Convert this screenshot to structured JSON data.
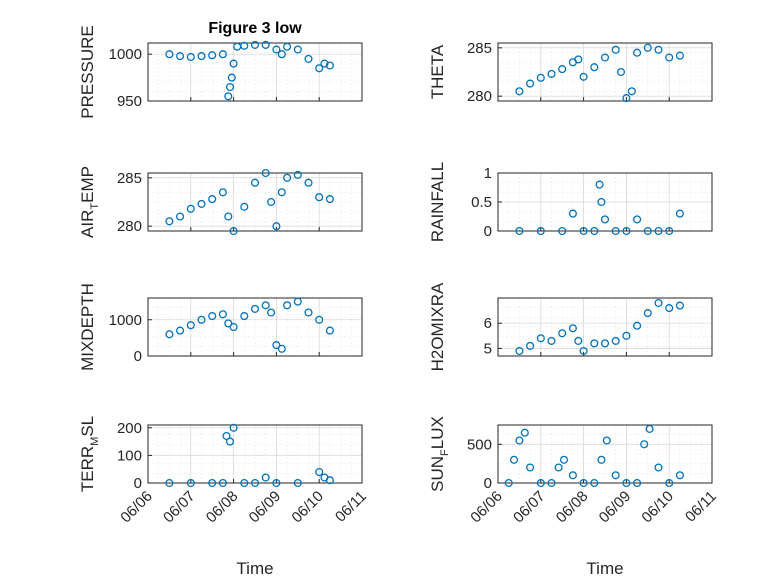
{
  "figure_title": "Figure 3 low",
  "marker_color": "#0072BD",
  "chart_data": [
    {
      "type": "scatter",
      "title": "Figure 3 low",
      "ylabel": "PRESSURE",
      "xlabel": "",
      "xlim": [
        "06/06",
        "06/11"
      ],
      "ylim": [
        950,
        1012
      ],
      "yticks": [
        "950",
        "1000"
      ],
      "ytick_values": [
        950,
        1000
      ],
      "x": [
        "06/06 12:00",
        "06/06 18:00",
        "06/07 00:00",
        "06/07 06:00",
        "06/07 12:00",
        "06/07 18:00",
        "06/07 21:00",
        "06/07 22:00",
        "06/07 23:00",
        "06/08 00:00",
        "06/08 02:00",
        "06/08 06:00",
        "06/08 12:00",
        "06/08 18:00",
        "06/09 00:00",
        "06/09 03:00",
        "06/09 06:00",
        "06/09 12:00",
        "06/09 18:00",
        "06/10 00:00",
        "06/10 03:00",
        "06/10 06:00"
      ],
      "y": [
        1000,
        998,
        997,
        998,
        999,
        1000,
        955,
        965,
        975,
        990,
        1008,
        1009,
        1010,
        1010,
        1005,
        1000,
        1008,
        1005,
        995,
        985,
        990,
        988
      ]
    },
    {
      "type": "scatter",
      "ylabel": "THETA",
      "xlim": [
        "06/06",
        "06/11"
      ],
      "ylim": [
        279.5,
        285.5
      ],
      "yticks": [
        "280",
        "285"
      ],
      "ytick_values": [
        280,
        285
      ],
      "x": [
        "06/06 12:00",
        "06/06 18:00",
        "06/07 00:00",
        "06/07 06:00",
        "06/07 12:00",
        "06/07 18:00",
        "06/07 21:00",
        "06/08 00:00",
        "06/08 06:00",
        "06/08 12:00",
        "06/08 18:00",
        "06/08 21:00",
        "06/09 00:00",
        "06/09 03:00",
        "06/09 06:00",
        "06/09 12:00",
        "06/09 18:00",
        "06/10 00:00",
        "06/10 06:00"
      ],
      "y": [
        280.5,
        281.3,
        281.9,
        282.3,
        282.8,
        283.5,
        283.8,
        282.0,
        283.0,
        284.0,
        284.8,
        282.5,
        279.8,
        280.5,
        284.5,
        285.0,
        284.8,
        284.0,
        284.2
      ]
    },
    {
      "type": "scatter",
      "ylabel": "AIR_TEMP",
      "xlim": [
        "06/06",
        "06/11"
      ],
      "ylim": [
        279.5,
        285.5
      ],
      "yticks": [
        "280",
        "285"
      ],
      "ytick_values": [
        280,
        285
      ],
      "x": [
        "06/06 12:00",
        "06/06 18:00",
        "06/07 00:00",
        "06/07 06:00",
        "06/07 12:00",
        "06/07 18:00",
        "06/07 21:00",
        "06/08 00:00",
        "06/08 06:00",
        "06/08 12:00",
        "06/08 18:00",
        "06/08 21:00",
        "06/09 00:00",
        "06/09 03:00",
        "06/09 06:00",
        "06/09 12:00",
        "06/09 18:00",
        "06/10 00:00",
        "06/10 06:00"
      ],
      "y": [
        280.5,
        281.0,
        281.8,
        282.3,
        282.8,
        283.5,
        281.0,
        279.5,
        282.0,
        284.5,
        285.5,
        282.5,
        280.0,
        283.5,
        285.0,
        285.3,
        284.5,
        283.0,
        282.8
      ]
    },
    {
      "type": "scatter",
      "ylabel": "RAINFALL",
      "xlim": [
        "06/06",
        "06/11"
      ],
      "ylim": [
        0,
        1
      ],
      "yticks": [
        "0",
        "0.5",
        "1"
      ],
      "ytick_values": [
        0,
        0.5,
        1
      ],
      "x": [
        "06/06 12:00",
        "06/07 00:00",
        "06/07 12:00",
        "06/07 18:00",
        "06/08 00:00",
        "06/08 06:00",
        "06/08 09:00",
        "06/08 10:00",
        "06/08 12:00",
        "06/08 18:00",
        "06/09 00:00",
        "06/09 06:00",
        "06/09 12:00",
        "06/09 18:00",
        "06/10 00:00",
        "06/10 06:00"
      ],
      "y": [
        0,
        0,
        0,
        0.3,
        0,
        0,
        0.8,
        0.5,
        0.2,
        0,
        0,
        0.2,
        0,
        0,
        0,
        0.3
      ]
    },
    {
      "type": "scatter",
      "ylabel": "MIXDEPTH",
      "xlim": [
        "06/06",
        "06/11"
      ],
      "ylim": [
        0,
        1600
      ],
      "yticks": [
        "0",
        "1000"
      ],
      "ytick_values": [
        0,
        1000
      ],
      "x": [
        "06/06 12:00",
        "06/06 18:00",
        "06/07 00:00",
        "06/07 06:00",
        "06/07 12:00",
        "06/07 18:00",
        "06/07 21:00",
        "06/08 00:00",
        "06/08 06:00",
        "06/08 12:00",
        "06/08 18:00",
        "06/08 21:00",
        "06/09 00:00",
        "06/09 03:00",
        "06/09 06:00",
        "06/09 12:00",
        "06/09 18:00",
        "06/10 00:00",
        "06/10 06:00"
      ],
      "y": [
        600,
        700,
        850,
        1000,
        1100,
        1150,
        900,
        800,
        1100,
        1300,
        1400,
        1200,
        300,
        200,
        1400,
        1500,
        1200,
        1000,
        700
      ]
    },
    {
      "type": "scatter",
      "ylabel": "H2OMIXRA",
      "xlim": [
        "06/06",
        "06/11"
      ],
      "ylim": [
        4.7,
        7.0
      ],
      "yticks": [
        "5",
        "6"
      ],
      "ytick_values": [
        5,
        6
      ],
      "x": [
        "06/06 12:00",
        "06/06 18:00",
        "06/07 00:00",
        "06/07 06:00",
        "06/07 12:00",
        "06/07 18:00",
        "06/07 21:00",
        "06/08 00:00",
        "06/08 06:00",
        "06/08 12:00",
        "06/08 18:00",
        "06/09 00:00",
        "06/09 06:00",
        "06/09 12:00",
        "06/09 18:00",
        "06/10 00:00",
        "06/10 06:00"
      ],
      "y": [
        4.9,
        5.1,
        5.4,
        5.3,
        5.6,
        5.8,
        5.3,
        4.9,
        5.2,
        5.2,
        5.3,
        5.5,
        5.9,
        6.4,
        6.8,
        6.6,
        6.7
      ]
    },
    {
      "type": "scatter",
      "ylabel": "TERR_MSL",
      "xlim": [
        "06/06",
        "06/11"
      ],
      "ylim": [
        0,
        210
      ],
      "yticks": [
        "0",
        "100",
        "200"
      ],
      "ytick_values": [
        0,
        100,
        200
      ],
      "xticks": [
        "06/06",
        "06/07",
        "06/08",
        "06/09",
        "06/10",
        "06/11"
      ],
      "xlabel": "Time",
      "x": [
        "06/06 12:00",
        "06/07 00:00",
        "06/07 12:00",
        "06/07 18:00",
        "06/07 20:00",
        "06/07 22:00",
        "06/08 00:00",
        "06/08 06:00",
        "06/08 12:00",
        "06/08 18:00",
        "06/09 00:00",
        "06/09 12:00",
        "06/10 00:00",
        "06/10 03:00",
        "06/10 06:00"
      ],
      "y": [
        0,
        0,
        0,
        0,
        170,
        150,
        200,
        0,
        0,
        20,
        0,
        0,
        40,
        20,
        10
      ]
    },
    {
      "type": "scatter",
      "ylabel": "SUN_FLUX",
      "xlim": [
        "06/06",
        "06/11"
      ],
      "ylim": [
        0,
        750
      ],
      "yticks": [
        "0",
        "500"
      ],
      "ytick_values": [
        0,
        500
      ],
      "xticks": [
        "06/06",
        "06/07",
        "06/08",
        "06/09",
        "06/10",
        "06/11"
      ],
      "xlabel": "Time",
      "x": [
        "06/06 06:00",
        "06/06 09:00",
        "06/06 12:00",
        "06/06 15:00",
        "06/06 18:00",
        "06/07 00:00",
        "06/07 06:00",
        "06/07 10:00",
        "06/07 13:00",
        "06/07 18:00",
        "06/08 00:00",
        "06/08 06:00",
        "06/08 10:00",
        "06/08 13:00",
        "06/08 18:00",
        "06/09 00:00",
        "06/09 06:00",
        "06/09 10:00",
        "06/09 13:00",
        "06/09 18:00",
        "06/10 00:00",
        "06/10 06:00"
      ],
      "y": [
        0,
        300,
        550,
        650,
        200,
        0,
        0,
        200,
        300,
        100,
        0,
        0,
        300,
        550,
        100,
        0,
        0,
        500,
        700,
        200,
        0,
        100
      ]
    }
  ]
}
